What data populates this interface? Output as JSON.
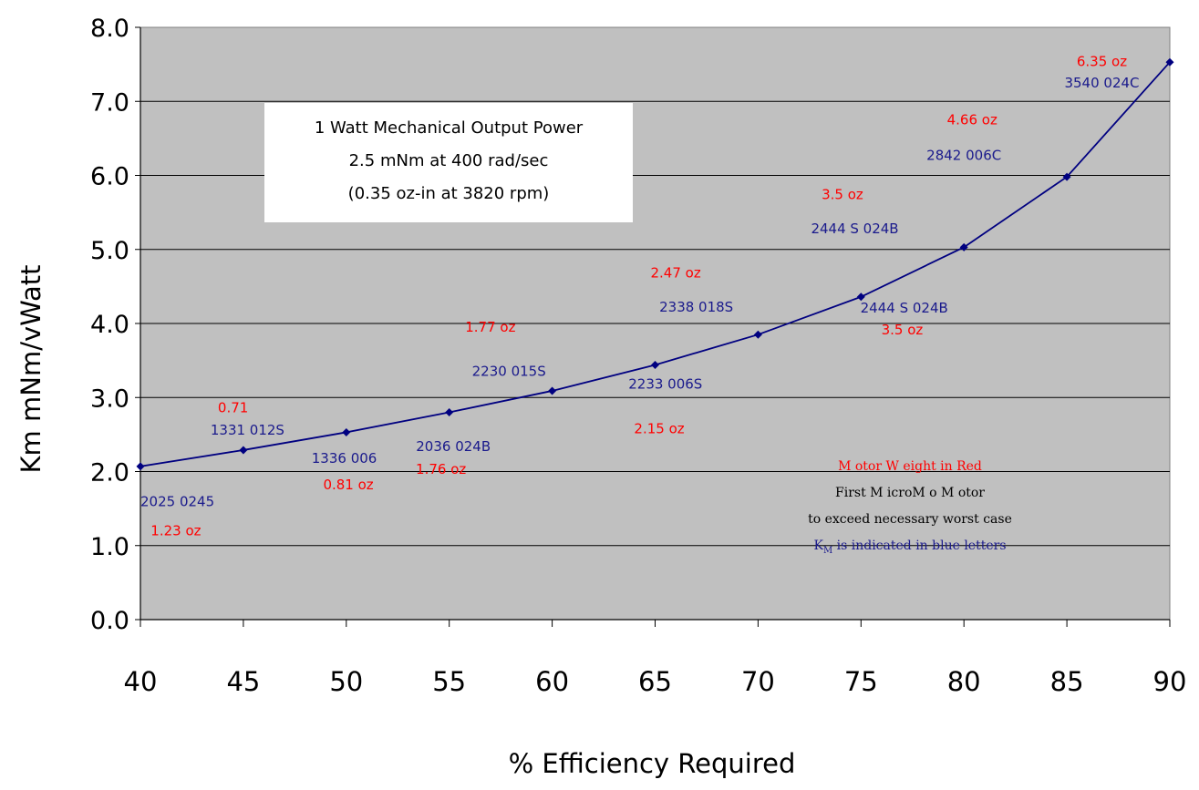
{
  "chart_data": {
    "type": "line",
    "x": [
      40,
      45,
      50,
      55,
      60,
      65,
      70,
      75,
      80,
      85,
      90
    ],
    "series": [
      {
        "values": [
          2.07,
          2.29,
          2.53,
          2.8,
          3.09,
          3.44,
          3.85,
          4.36,
          5.03,
          5.98,
          7.53
        ],
        "color": "#000080"
      }
    ],
    "xlabel": "% Efficiency Required",
    "ylabel": "Km mNm/vWatt",
    "xlim": [
      40,
      90
    ],
    "ylim": [
      0,
      8
    ],
    "x_ticks": [
      "40",
      "45",
      "50",
      "55",
      "60",
      "65",
      "70",
      "75",
      "80",
      "85",
      "90"
    ],
    "y_ticks": [
      "0.0",
      "1.0",
      "2.0",
      "3.0",
      "4.0",
      "5.0",
      "6.0",
      "7.0",
      "8.0"
    ],
    "grid": "horizontal",
    "plot_background": "#c0c0c0",
    "info_box": [
      "1 Watt Mechanical Output Power",
      "2.5 mNm at 400 rad/sec",
      "(0.35 oz-in at 3820 rpm)"
    ],
    "annotations": [
      {
        "text": "2025 0245",
        "x": 40,
        "y": 1.53,
        "color": "#1a1a8c",
        "anchor": "start"
      },
      {
        "text": "1.23 oz",
        "x": 40.5,
        "y": 1.14,
        "color": "#ff0000",
        "anchor": "start"
      },
      {
        "text": "0.71",
        "x": 44.5,
        "y": 2.8,
        "color": "#ff0000",
        "anchor": "middle"
      },
      {
        "text": "1331 012S",
        "x": 45.2,
        "y": 2.5,
        "color": "#1a1a8c",
        "anchor": "middle"
      },
      {
        "text": "1336 006",
        "x": 49.9,
        "y": 2.12,
        "color": "#1a1a8c",
        "anchor": "middle"
      },
      {
        "text": "0.81 oz",
        "x": 50.1,
        "y": 1.76,
        "color": "#ff0000",
        "anchor": "middle"
      },
      {
        "text": "2036 024B",
        "x": 55.2,
        "y": 2.28,
        "color": "#1a1a8c",
        "anchor": "middle"
      },
      {
        "text": "1.76  oz",
        "x": 54.6,
        "y": 1.97,
        "color": "#ff0000",
        "anchor": "middle"
      },
      {
        "text": "1.77 oz",
        "x": 57.0,
        "y": 3.89,
        "color": "#ff0000",
        "anchor": "middle"
      },
      {
        "text": "2230 015S",
        "x": 57.9,
        "y": 3.29,
        "color": "#1a1a8c",
        "anchor": "middle"
      },
      {
        "text": "2.47 oz",
        "x": 66.0,
        "y": 4.62,
        "color": "#ff0000",
        "anchor": "middle"
      },
      {
        "text": "2338 018S",
        "x": 67.0,
        "y": 4.16,
        "color": "#1a1a8c",
        "anchor": "middle"
      },
      {
        "text": "2233 006S",
        "x": 65.5,
        "y": 3.12,
        "color": "#1a1a8c",
        "anchor": "middle"
      },
      {
        "text": "2.15 oz",
        "x": 65.2,
        "y": 2.52,
        "color": "#ff0000",
        "anchor": "middle"
      },
      {
        "text": "3.5 oz",
        "x": 74.1,
        "y": 5.68,
        "color": "#ff0000",
        "anchor": "middle"
      },
      {
        "text": "2444 S 024B",
        "x": 74.7,
        "y": 5.22,
        "color": "#1a1a8c",
        "anchor": "middle"
      },
      {
        "text": "2444 S 024B",
        "x": 77.1,
        "y": 4.15,
        "color": "#1a1a8c",
        "anchor": "middle"
      },
      {
        "text": "3.5 oz",
        "x": 77.0,
        "y": 3.85,
        "color": "#ff0000",
        "anchor": "middle"
      },
      {
        "text": "4.66 oz",
        "x": 80.4,
        "y": 6.69,
        "color": "#ff0000",
        "anchor": "middle"
      },
      {
        "text": "2842 006C",
        "x": 80.0,
        "y": 6.21,
        "color": "#1a1a8c",
        "anchor": "middle"
      },
      {
        "text": "6.35 oz",
        "x": 86.7,
        "y": 7.48,
        "color": "#ff0000",
        "anchor": "middle"
      },
      {
        "text": "3540 024C",
        "x": 86.7,
        "y": 7.19,
        "color": "#1a1a8c",
        "anchor": "middle"
      }
    ],
    "legend_notes": [
      {
        "text": "M otor W eight in Red",
        "color": "#ff0000"
      },
      {
        "text": "First M icroM o M otor",
        "color": "#000000"
      },
      {
        "text": "to exceed necessary worst case",
        "color": "#000000"
      },
      {
        "text": "K",
        "sub": "M",
        "rest": " is indicated in blue letters",
        "color": "#1a1a8c"
      }
    ]
  }
}
